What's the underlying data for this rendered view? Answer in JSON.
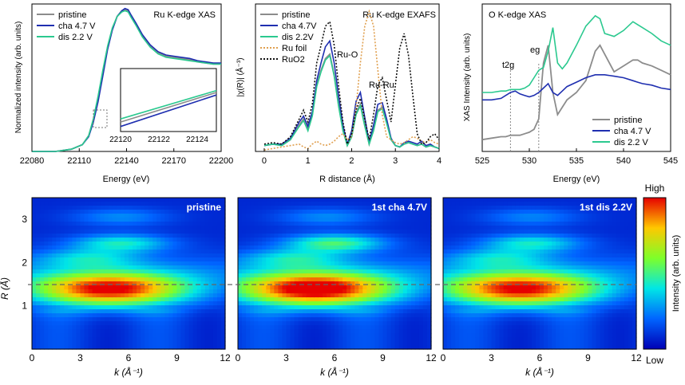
{
  "colors": {
    "pristine": "#8c8c8c",
    "cha": "#1f2fb0",
    "dis": "#2bc98f",
    "ru_foil": "#e0a050",
    "ruo2": "#111111"
  },
  "chart_data": [
    {
      "id": "ru_xas",
      "type": "line",
      "title": "Ru K-edge XAS",
      "xlabel": "Energy (eV)",
      "ylabel": "Normalized intensity (arb. units)",
      "xlim": [
        22080,
        22200
      ],
      "ylim": [
        0,
        1.3
      ],
      "xticks": [
        22080,
        22110,
        22140,
        22170,
        22200
      ],
      "x": [
        22080,
        22095,
        22105,
        22112,
        22116,
        22119,
        22122,
        22125,
        22128,
        22131,
        22134,
        22137,
        22139,
        22141,
        22143,
        22146,
        22150,
        22155,
        22160,
        22165,
        22170,
        22175,
        22180,
        22185,
        22190,
        22195,
        22200
      ],
      "series": [
        {
          "name": "pristine",
          "values": [
            0.0,
            0.0,
            0.02,
            0.06,
            0.14,
            0.28,
            0.47,
            0.7,
            0.92,
            1.08,
            1.19,
            1.24,
            1.25,
            1.24,
            1.19,
            1.12,
            1.02,
            0.93,
            0.87,
            0.84,
            0.83,
            0.82,
            0.81,
            0.79,
            0.78,
            0.77,
            0.77
          ]
        },
        {
          "name": "cha 4.7 V",
          "values": [
            0.0,
            0.0,
            0.02,
            0.06,
            0.13,
            0.26,
            0.44,
            0.67,
            0.9,
            1.07,
            1.19,
            1.24,
            1.26,
            1.25,
            1.2,
            1.13,
            1.03,
            0.94,
            0.88,
            0.85,
            0.84,
            0.83,
            0.82,
            0.8,
            0.79,
            0.78,
            0.78
          ]
        },
        {
          "name": "dis 2.2 V",
          "values": [
            0.0,
            0.0,
            0.02,
            0.06,
            0.14,
            0.29,
            0.49,
            0.72,
            0.93,
            1.09,
            1.19,
            1.23,
            1.24,
            1.23,
            1.18,
            1.11,
            1.01,
            0.92,
            0.86,
            0.83,
            0.82,
            0.81,
            0.8,
            0.79,
            0.78,
            0.77,
            0.77
          ]
        }
      ],
      "inset": {
        "xlim": [
          22120,
          22125
        ],
        "xticks": [
          22120,
          22122,
          22124
        ],
        "series": [
          {
            "name": "pristine",
            "values": [
              0.15,
              0.62
            ]
          },
          {
            "name": "cha 4.7 V",
            "values": [
              0.08,
              0.58
            ]
          },
          {
            "name": "dis 2.2 V",
            "values": [
              0.2,
              0.65
            ]
          }
        ]
      }
    },
    {
      "id": "exafs",
      "type": "line",
      "title": "Ru K-edge EXAFS",
      "xlabel": "R distance (Å)",
      "ylabel": "|χ(R)| (Å⁻³)",
      "xlim": [
        -0.2,
        4
      ],
      "ylim": [
        0,
        1.0
      ],
      "xticks": [
        0,
        1,
        2,
        3,
        4
      ],
      "annotations": [
        "Ru-O",
        "Ru-Ru"
      ],
      "x": [
        0,
        0.2,
        0.4,
        0.6,
        0.8,
        0.9,
        1.0,
        1.1,
        1.2,
        1.3,
        1.4,
        1.5,
        1.6,
        1.7,
        1.8,
        1.9,
        2.0,
        2.1,
        2.2,
        2.3,
        2.4,
        2.5,
        2.6,
        2.7,
        2.8,
        2.9,
        3.0,
        3.1,
        3.2,
        3.3,
        3.4,
        3.5,
        3.6,
        3.7,
        3.8,
        3.9,
        4.0
      ],
      "series": [
        {
          "name": "pristine",
          "values": [
            0.04,
            0.05,
            0.04,
            0.08,
            0.18,
            0.22,
            0.15,
            0.25,
            0.45,
            0.55,
            0.63,
            0.66,
            0.52,
            0.32,
            0.15,
            0.04,
            0.1,
            0.26,
            0.32,
            0.18,
            0.05,
            0.15,
            0.28,
            0.3,
            0.2,
            0.08,
            0.04,
            0.03,
            0.05,
            0.06,
            0.05,
            0.04,
            0.05,
            0.03,
            0.04,
            0.03,
            0.02
          ]
        },
        {
          "name": "cha 4.7V",
          "values": [
            0.04,
            0.05,
            0.05,
            0.09,
            0.2,
            0.24,
            0.17,
            0.27,
            0.48,
            0.6,
            0.71,
            0.75,
            0.6,
            0.38,
            0.18,
            0.05,
            0.14,
            0.34,
            0.4,
            0.23,
            0.06,
            0.18,
            0.32,
            0.33,
            0.22,
            0.09,
            0.04,
            0.03,
            0.06,
            0.07,
            0.06,
            0.05,
            0.07,
            0.04,
            0.05,
            0.03,
            0.02
          ]
        },
        {
          "name": "dis 2.2V",
          "values": [
            0.04,
            0.05,
            0.04,
            0.08,
            0.17,
            0.21,
            0.14,
            0.24,
            0.44,
            0.54,
            0.62,
            0.65,
            0.51,
            0.31,
            0.14,
            0.04,
            0.1,
            0.25,
            0.31,
            0.17,
            0.05,
            0.14,
            0.27,
            0.29,
            0.19,
            0.08,
            0.04,
            0.03,
            0.05,
            0.06,
            0.05,
            0.04,
            0.05,
            0.03,
            0.04,
            0.03,
            0.02
          ]
        },
        {
          "name": "Ru foil",
          "values": [
            0.01,
            0.02,
            0.03,
            0.04,
            0.05,
            0.03,
            0.02,
            0.05,
            0.07,
            0.05,
            0.04,
            0.05,
            0.07,
            0.1,
            0.12,
            0.08,
            0.1,
            0.3,
            0.6,
            0.85,
            0.95,
            0.85,
            0.55,
            0.25,
            0.1,
            0.08,
            0.06,
            0.05,
            0.06,
            0.08,
            0.1,
            0.09,
            0.07,
            0.06,
            0.08,
            0.06,
            0.05
          ]
        },
        {
          "name": "RuO2",
          "values": [
            0.05,
            0.06,
            0.05,
            0.1,
            0.22,
            0.28,
            0.2,
            0.32,
            0.6,
            0.72,
            0.85,
            0.88,
            0.72,
            0.45,
            0.2,
            0.05,
            0.12,
            0.28,
            0.36,
            0.22,
            0.08,
            0.25,
            0.45,
            0.5,
            0.35,
            0.2,
            0.45,
            0.7,
            0.8,
            0.65,
            0.38,
            0.12,
            0.05,
            0.06,
            0.1,
            0.12,
            0.08
          ]
        }
      ]
    },
    {
      "id": "o_xas",
      "type": "line",
      "title": "O K-edge XAS",
      "xlabel": "Energy (eV)",
      "ylabel": "XAS Intensity (arb. units)",
      "xlim": [
        525,
        545
      ],
      "ylim": [
        0,
        1.0
      ],
      "xticks": [
        525,
        530,
        535,
        540,
        545
      ],
      "annotations": [
        "t2g",
        "eg"
      ],
      "vlines": [
        528,
        531
      ],
      "x": [
        525,
        526,
        527,
        527.5,
        528,
        528.5,
        529,
        529.5,
        530,
        530.5,
        531,
        531.5,
        532,
        532.5,
        533,
        533.5,
        534,
        535,
        536,
        537,
        537.5,
        538,
        539,
        540,
        541,
        541.5,
        542,
        543,
        544,
        545
      ],
      "series": [
        {
          "name": "pristine",
          "values": [
            0.08,
            0.09,
            0.1,
            0.1,
            0.11,
            0.11,
            0.11,
            0.12,
            0.13,
            0.15,
            0.22,
            0.6,
            0.72,
            0.4,
            0.25,
            0.3,
            0.35,
            0.4,
            0.48,
            0.68,
            0.72,
            0.66,
            0.54,
            0.58,
            0.62,
            0.62,
            0.6,
            0.58,
            0.55,
            0.52
          ]
        },
        {
          "name": "cha 4.7 V",
          "values": [
            0.35,
            0.35,
            0.36,
            0.38,
            0.4,
            0.41,
            0.39,
            0.38,
            0.37,
            0.38,
            0.4,
            0.43,
            0.46,
            0.4,
            0.38,
            0.41,
            0.44,
            0.47,
            0.5,
            0.52,
            0.52,
            0.52,
            0.51,
            0.5,
            0.48,
            0.47,
            0.46,
            0.45,
            0.43,
            0.42
          ]
        },
        {
          "name": "dis 2.2 V",
          "values": [
            0.4,
            0.4,
            0.41,
            0.41,
            0.42,
            0.42,
            0.42,
            0.43,
            0.45,
            0.5,
            0.55,
            0.57,
            0.68,
            0.84,
            0.6,
            0.56,
            0.6,
            0.72,
            0.85,
            0.92,
            0.9,
            0.8,
            0.78,
            0.82,
            0.88,
            0.86,
            0.84,
            0.8,
            0.75,
            0.72
          ]
        }
      ]
    },
    {
      "id": "wt_maps",
      "type": "heatmap",
      "xlabel": "k (Å⁻¹)",
      "ylabel": "R (Å)",
      "xlim": [
        0,
        12
      ],
      "ylim": [
        0,
        3.5
      ],
      "xticks": [
        0,
        3,
        6,
        9,
        12
      ],
      "yticks": [
        1,
        2,
        3
      ],
      "dashed_R": 1.45,
      "panels": [
        {
          "label": "pristine",
          "peaks": [
            {
              "k": 4.8,
              "R": 1.38,
              "amp": 0.92
            },
            {
              "k": 5.5,
              "R": 2.45,
              "amp": 0.34
            },
            {
              "k": 5.5,
              "R": 3.05,
              "amp": 0.18
            },
            {
              "k": 3.5,
              "R": 2.1,
              "amp": 0.24
            }
          ]
        },
        {
          "label": "1st cha 4.7V",
          "peaks": [
            {
              "k": 4.8,
              "R": 1.38,
              "amp": 1.0
            },
            {
              "k": 6.0,
              "R": 2.45,
              "amp": 0.42
            },
            {
              "k": 5.5,
              "R": 3.05,
              "amp": 0.18
            },
            {
              "k": 3.5,
              "R": 2.1,
              "amp": 0.26
            }
          ]
        },
        {
          "label": "1st dis 2.2V",
          "peaks": [
            {
              "k": 4.8,
              "R": 1.38,
              "amp": 0.9
            },
            {
              "k": 5.5,
              "R": 2.45,
              "amp": 0.33
            },
            {
              "k": 5.5,
              "R": 3.05,
              "amp": 0.17
            },
            {
              "k": 3.5,
              "R": 2.1,
              "amp": 0.24
            }
          ]
        }
      ],
      "colorbar": {
        "label": "Intensity (arb. units)",
        "high": "High",
        "low": "Low"
      }
    }
  ]
}
